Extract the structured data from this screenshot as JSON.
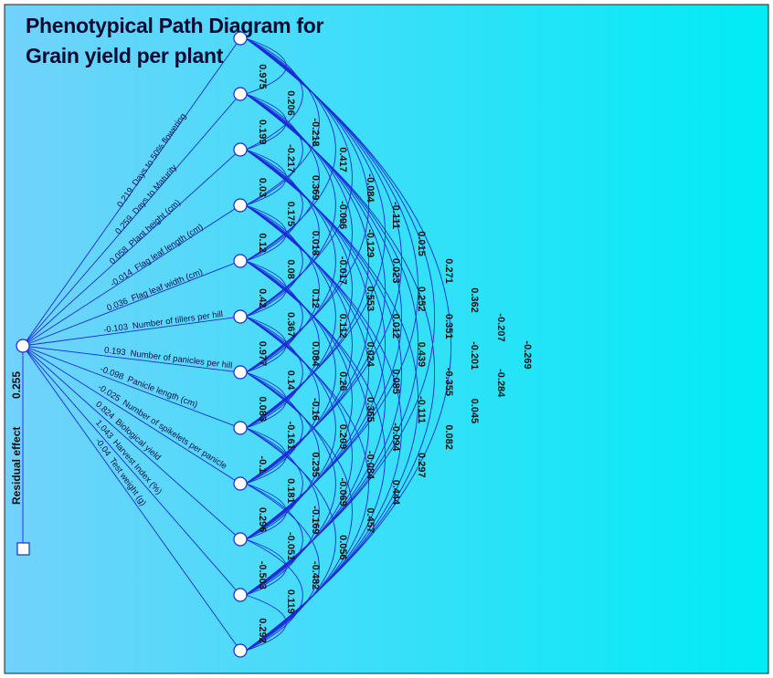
{
  "title": {
    "line1": "Phenotypical Path Diagram for",
    "line2": "Grain yield per plant"
  },
  "residual": {
    "label": "Residual effect",
    "value": "0.255"
  },
  "traits": [
    {
      "name": "Days to 50% flowering",
      "direct": "0.219"
    },
    {
      "name": "Days to Maturity",
      "direct": "0.259"
    },
    {
      "name": "Plant height (cm)",
      "direct": "0.058"
    },
    {
      "name": "Flag leaf length (cm)",
      "direct": "-0.014"
    },
    {
      "name": "Flag leaf width (cm)",
      "direct": "0.036"
    },
    {
      "name": "Number of tillers per hill",
      "direct": "-0.103"
    },
    {
      "name": "Number of panicles per hill",
      "direct": "0.193"
    },
    {
      "name": "Panicle length (cm)",
      "direct": "-0.098"
    },
    {
      "name": "Number of spikelets per  panicle",
      "direct": "-0.025"
    },
    {
      "name": "Biological yield",
      "direct": "0.824"
    },
    {
      "name": "Harvest Index (%)",
      "direct": "1.043"
    },
    {
      "name": "Test weight (g)",
      "direct": "-0.04"
    }
  ],
  "correlations": [
    {
      "lag": 1,
      "values": [
        "0.975",
        "0.199",
        "0.03",
        "0.12",
        "0.42",
        "0.977",
        "0.083",
        "-0.1",
        "0.296",
        "-0.503",
        "0.292"
      ]
    },
    {
      "lag": 2,
      "values": [
        "0.206",
        "-0.217",
        "0.175",
        "0.08",
        "0.367",
        "0.14",
        "-0.161",
        "0.181",
        "-0.051",
        "0.119"
      ]
    },
    {
      "lag": 3,
      "values": [
        "-0.218",
        "0.369",
        "0.018",
        "0.12",
        "0.084",
        "-0.16",
        "0.235",
        "-0.169",
        "-0.482"
      ]
    },
    {
      "lag": 4,
      "values": [
        "0.417",
        "-0.096",
        "-0.017",
        "0.112",
        "0.26",
        "0.209",
        "-0.069",
        "0.056"
      ]
    },
    {
      "lag": 5,
      "values": [
        "-0.084",
        "-0.129",
        "0.553",
        "0.024",
        "0.365",
        "-0.084",
        "0.457"
      ]
    },
    {
      "lag": 6,
      "values": [
        "-0.111",
        "0.023",
        "0.012",
        "0.085",
        "-0.094",
        "0.444"
      ]
    },
    {
      "lag": 7,
      "values": [
        "0.015",
        "0.252",
        "0.439",
        "-0.111",
        "0.297"
      ]
    },
    {
      "lag": 8,
      "values": [
        "0.271",
        "0.351",
        "-0.355",
        "0.082"
      ]
    },
    {
      "lag": 9,
      "values": [
        "0.362",
        "-0.201",
        "0.045"
      ]
    },
    {
      "lag": 10,
      "values": [
        "-0.207",
        "-0.284"
      ]
    },
    {
      "lag": 11,
      "values": [
        "-0.269"
      ]
    }
  ],
  "colors": {
    "background_left": "#6fd3fb",
    "background_right": "#00ecf6",
    "line": "#1a2ad6",
    "node_fill": "#ffffff"
  }
}
